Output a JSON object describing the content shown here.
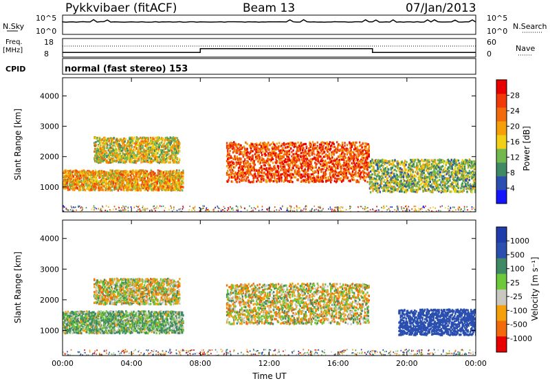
{
  "header": {
    "station": "Pykkvibaer (fitACF)",
    "beam": "Beam 13",
    "date": "07/Jan/2013"
  },
  "panels": {
    "nsky": {
      "label": "N.Sky",
      "tick_top": "10^5",
      "tick_bottom": "10^0"
    },
    "nsearch": {
      "label": "N.Search",
      "tick_top": "10^5",
      "tick_bottom": "10^0"
    },
    "freq": {
      "label_line1": "Freq.",
      "label_line2": "[MHz]",
      "tick_top": "18",
      "tick_bottom": "8"
    },
    "nave": {
      "label": "Nave",
      "tick_top": "60",
      "tick_bottom": "0"
    },
    "cpid": {
      "label": "CPID",
      "text": "normal (fast stereo) 153"
    }
  },
  "colors": {
    "power": [
      "#1414ff",
      "#2a4fb0",
      "#3f8a64",
      "#72b84e",
      "#f2d018",
      "#f5a00a",
      "#f26a0a",
      "#f23a08",
      "#e80000"
    ],
    "velocity": [
      "#e80000",
      "#f26a0a",
      "#f5a00a",
      "#c8c8c0",
      "#6dc83a",
      "#3f8a64",
      "#2a4fb0",
      "#1e3caa"
    ]
  },
  "chart_data": [
    {
      "type": "heatmap",
      "title": "Power",
      "ylabel": "Slant Range [km]",
      "xlabel": "Time UT",
      "x_ticks": [
        "00:00",
        "04:00",
        "08:00",
        "12:00",
        "16:00",
        "20:00",
        "00:00"
      ],
      "y_ticks": [
        "1000",
        "2000",
        "3000",
        "4000"
      ],
      "xlim": [
        0,
        24
      ],
      "ylim": [
        180,
        4600
      ],
      "colorbar": {
        "label": "Power [dB]",
        "ticks": [
          "4",
          "8",
          "12",
          "16",
          "20",
          "24",
          "28"
        ],
        "range": [
          0,
          30
        ]
      },
      "echo_regions": [
        {
          "t0": 0.0,
          "t1": 7.0,
          "r_center": 1250,
          "r_width": 550,
          "value": 18
        },
        {
          "t0": 1.8,
          "t1": 6.8,
          "r_center": 2250,
          "r_width": 700,
          "value": 15
        },
        {
          "t0": 9.5,
          "t1": 17.8,
          "r_center": 1850,
          "r_width": 1100,
          "value": 24
        },
        {
          "t0": 17.8,
          "t1": 24.0,
          "r_center": 1400,
          "r_width": 900,
          "value": 12
        }
      ]
    },
    {
      "type": "heatmap",
      "title": "Velocity",
      "ylabel": "Slant Range [km]",
      "xlabel": "Time UT",
      "x_ticks": [
        "00:00",
        "04:00",
        "08:00",
        "12:00",
        "16:00",
        "20:00",
        "00:00"
      ],
      "y_ticks": [
        "1000",
        "2000",
        "3000",
        "4000"
      ],
      "xlim": [
        0,
        24
      ],
      "ylim": [
        180,
        4600
      ],
      "colorbar": {
        "label": "Velocity [m s⁻¹]",
        "ticks": [
          "1000",
          "500",
          "100",
          "25",
          "-25",
          "-100",
          "-500",
          "-1000"
        ]
      },
      "echo_regions": [
        {
          "t0": 0.0,
          "t1": 7.0,
          "r_center": 1300,
          "r_width": 600,
          "value": 100
        },
        {
          "t0": 1.8,
          "t1": 6.8,
          "r_center": 2300,
          "r_width": 700,
          "value": 0
        },
        {
          "t0": 9.5,
          "t1": 17.8,
          "r_center": 1900,
          "r_width": 1100,
          "value": 0
        },
        {
          "t0": 19.5,
          "t1": 24.0,
          "r_center": 1300,
          "r_width": 700,
          "value": 800
        }
      ]
    }
  ],
  "time_series": {
    "freq_mhz": [
      {
        "t0": 0.0,
        "t1": 8.0,
        "value": 10.5
      },
      {
        "t0": 8.0,
        "t1": 18.0,
        "value": 12.5
      },
      {
        "t0": 18.0,
        "t1": 24.0,
        "value": 10.5
      }
    ],
    "nave": {
      "value": 25
    }
  }
}
